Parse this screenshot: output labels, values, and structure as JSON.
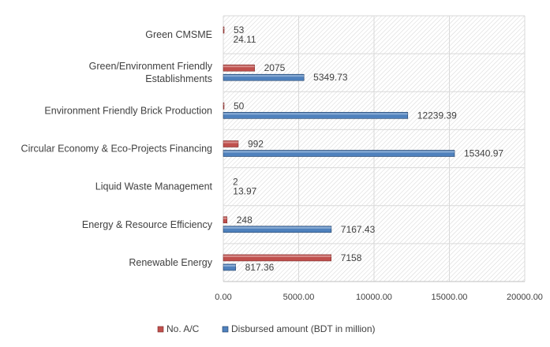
{
  "chart_data": {
    "type": "bar",
    "orientation": "horizontal",
    "categories": [
      "Green CMSME",
      "Green/Environment Friendly Establishments",
      "Environment Friendly Brick Production",
      "Circular Economy & Eco-Projects Financing",
      "Liquid Waste Management",
      "Energy & Resource Efficiency",
      "Renewable Energy"
    ],
    "category_lines": [
      [
        "Green CMSME"
      ],
      [
        "Green/Environment Friendly",
        "Establishments"
      ],
      [
        "Environment Friendly Brick Production"
      ],
      [
        "Circular Economy & Eco-Projects Financing"
      ],
      [
        "Liquid Waste Management"
      ],
      [
        "Energy & Resource Efficiency"
      ],
      [
        "Renewable Energy"
      ]
    ],
    "series": [
      {
        "name": "No. A/C",
        "color": "#c0504d",
        "values": [
          53,
          2075,
          50,
          992,
          2,
          248,
          7158
        ],
        "labels": [
          "53",
          "2075",
          "50",
          "992",
          "2",
          "248",
          "7158"
        ]
      },
      {
        "name": "Disbursed amount (BDT in million)",
        "color": "#4f81bd",
        "values": [
          24.11,
          5349.73,
          12239.39,
          15340.97,
          13.97,
          7167.43,
          817.36
        ],
        "labels": [
          "24.11",
          "5349.73",
          "12239.39",
          "15340.97",
          "13.97",
          "7167.43",
          "817.36"
        ]
      }
    ],
    "xlim": [
      0,
      20000
    ],
    "xticks": [
      "0.00",
      "5000.00",
      "10000.00",
      "15000.00",
      "20000.00"
    ],
    "xtick_values": [
      0,
      5000,
      10000,
      15000,
      20000
    ],
    "grid": true,
    "legend_position": "bottom",
    "title": "",
    "xlabel": "",
    "ylabel": ""
  }
}
